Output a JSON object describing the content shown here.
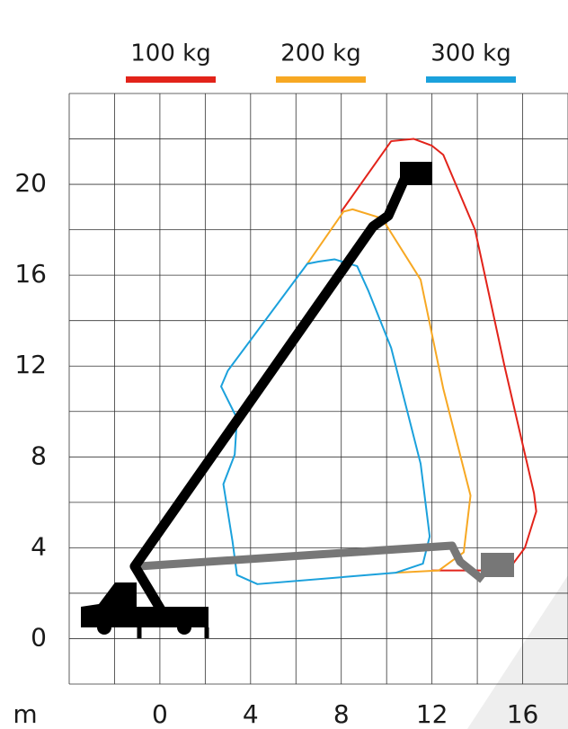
{
  "chart_data": {
    "type": "line",
    "x_label": "m",
    "xlim": [
      -4,
      18
    ],
    "xticks": [
      0,
      4,
      8,
      12,
      16
    ],
    "ylim": [
      -2,
      24
    ],
    "yticks": [
      0,
      4,
      8,
      12,
      16,
      20
    ],
    "grid": true,
    "grid_step": 2,
    "legend": "top",
    "series": [
      {
        "name": "100 kg",
        "color": "#e2231a",
        "x": [
          8,
          10.2,
          11.2,
          12,
          12.5,
          13.9,
          15.2,
          16.5,
          16.6,
          16.1,
          15.5,
          14.7,
          12
        ],
        "y": [
          18.8,
          21.9,
          22,
          21.7,
          21.3,
          18,
          12,
          6.4,
          5.6,
          4,
          3.2,
          3,
          3
        ]
      },
      {
        "name": "200 kg",
        "color": "#f7a823",
        "x": [
          6.5,
          8.1,
          8.5,
          9.8,
          11.5,
          12.5,
          13.7,
          13.4,
          12.3,
          10.4
        ],
        "y": [
          16.5,
          18.8,
          18.9,
          18.5,
          15.8,
          11,
          6.3,
          3.8,
          3,
          2.9
        ]
      },
      {
        "name": "300 kg",
        "color": "#1ba1dc",
        "x": [
          7,
          7.7,
          8.7,
          9.2,
          10.2,
          11.5,
          11.9,
          11.6,
          10.4,
          4.3,
          3.4,
          3.2,
          2.8,
          3.3,
          3.4,
          2.7,
          3,
          6.5,
          7
        ],
        "y": [
          16.6,
          16.7,
          16.4,
          15.3,
          12.8,
          7.7,
          4.5,
          3.3,
          2.9,
          2.4,
          2.8,
          4.3,
          6.8,
          8.1,
          9.7,
          11.1,
          11.8,
          16.5,
          16.6
        ]
      }
    ]
  }
}
